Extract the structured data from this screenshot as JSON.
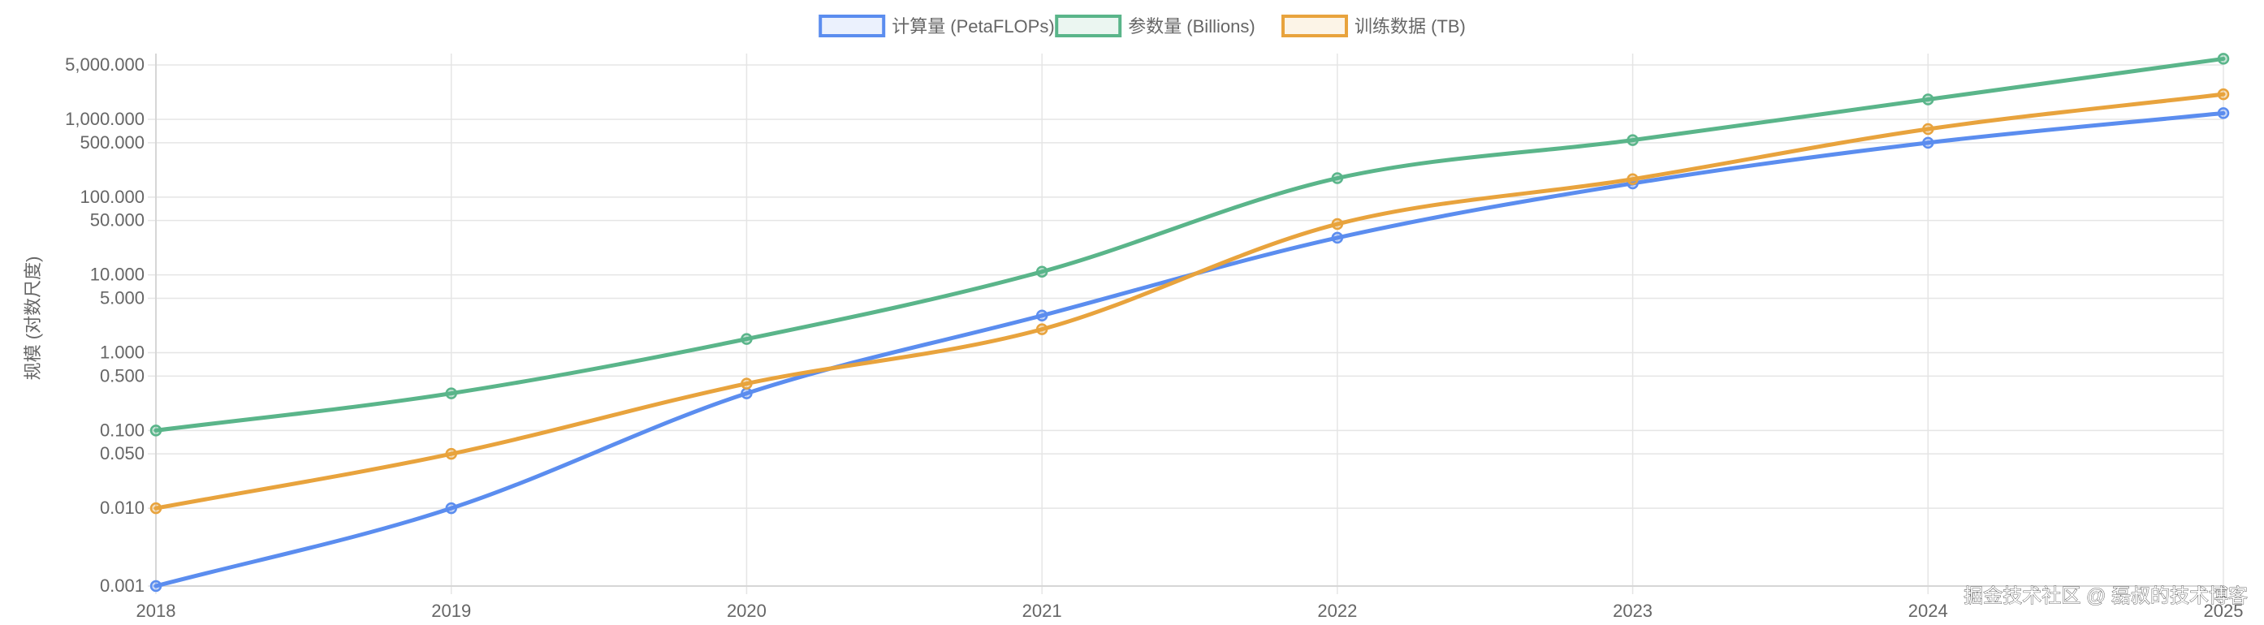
{
  "chart_data": {
    "type": "line",
    "title": "",
    "xlabel": "",
    "ylabel": "规模 (对数尺度)",
    "yscale": "log",
    "ylim": [
      0.001,
      7000
    ],
    "x": [
      "2018",
      "2019",
      "2020",
      "2021",
      "2022",
      "2023",
      "2024",
      "2025"
    ],
    "y_ticks": [
      {
        "value": 0.001,
        "label": "0.001"
      },
      {
        "value": 0.01,
        "label": "0.010"
      },
      {
        "value": 0.05,
        "label": "0.050"
      },
      {
        "value": 0.1,
        "label": "0.100"
      },
      {
        "value": 0.5,
        "label": "0.500"
      },
      {
        "value": 1,
        "label": "1.000"
      },
      {
        "value": 5,
        "label": "5.000"
      },
      {
        "value": 10,
        "label": "10.000"
      },
      {
        "value": 50,
        "label": "50.000"
      },
      {
        "value": 100,
        "label": "100.000"
      },
      {
        "value": 500,
        "label": "500.000"
      },
      {
        "value": 1000,
        "label": "1,000.000"
      },
      {
        "value": 5000,
        "label": "5,000.000"
      }
    ],
    "legend_position": "top-center",
    "grid": true,
    "series": [
      {
        "name": "计算量 (PetaFLOPs)",
        "color": "#5b8def",
        "values": [
          0.001,
          0.01,
          0.3,
          3,
          30,
          150,
          500,
          1200
        ]
      },
      {
        "name": "参数量 (Billions)",
        "color": "#5ab58a",
        "values": [
          0.1,
          0.3,
          1.5,
          11,
          175,
          540,
          1800,
          6000
        ]
      },
      {
        "name": "训练数据 (TB)",
        "color": "#e8a33d",
        "values": [
          0.01,
          0.05,
          0.4,
          2,
          45,
          170,
          750,
          2100
        ]
      }
    ]
  },
  "watermark": "掘金技术社区 @ 磊叔的技术博客"
}
